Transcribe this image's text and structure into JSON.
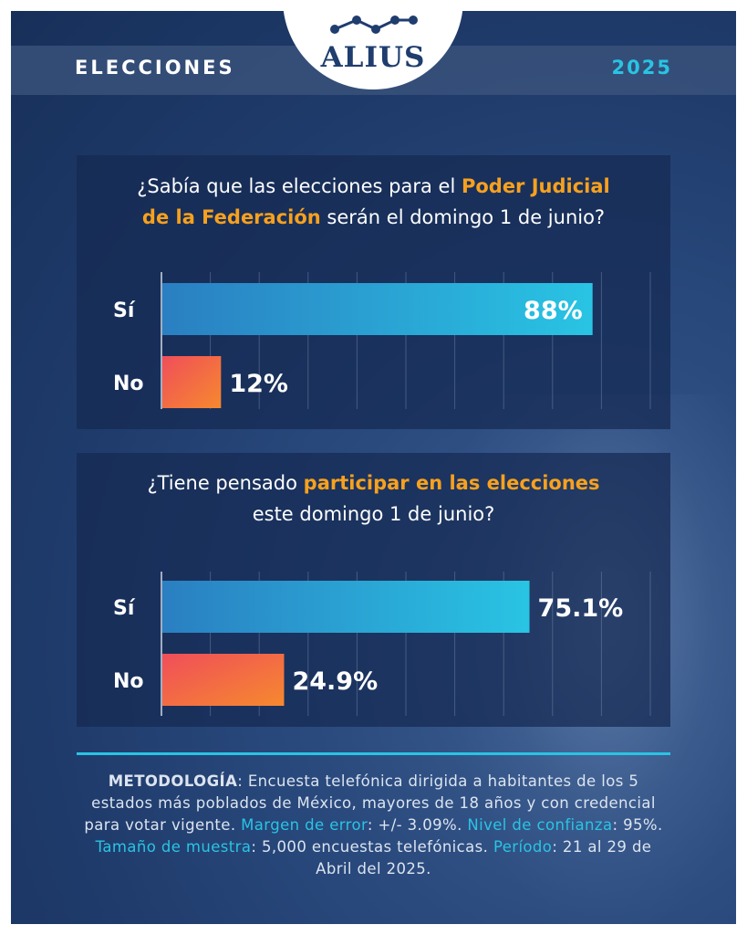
{
  "header": {
    "section": "ELECCIONES",
    "year": "2025",
    "brand": "ALIUS"
  },
  "chart_data": [
    {
      "type": "bar",
      "orientation": "horizontal",
      "title": "¿Sabía que las elecciones para el Poder Judicial de la Federación serán el domingo 1 de junio?",
      "title_parts": {
        "a": "¿Sabía que las elecciones para el ",
        "b": "Poder Judicial",
        "c": "de la Federación",
        "d": " serán el domingo 1 de junio?"
      },
      "categories": [
        "Sí",
        "No"
      ],
      "values": [
        88,
        12
      ],
      "value_labels": [
        "88%",
        "12%"
      ],
      "unit": "%",
      "xlim": [
        0,
        100
      ],
      "grid": true,
      "colors": [
        "#29c4e4",
        "#f04e5a"
      ]
    },
    {
      "type": "bar",
      "orientation": "horizontal",
      "title": "¿Tiene pensado participar en las elecciones este domingo 1 de junio?",
      "title_parts": {
        "a": "¿Tiene pensado ",
        "b": "participar en las elecciones",
        "c": "este domingo 1 de junio?"
      },
      "categories": [
        "Sí",
        "No"
      ],
      "values": [
        75.1,
        24.9
      ],
      "value_labels": [
        "75.1%",
        "24.9%"
      ],
      "unit": "%",
      "xlim": [
        0,
        100
      ],
      "grid": true,
      "colors": [
        "#29c4e4",
        "#f04e5a"
      ]
    }
  ],
  "methodology": {
    "label": "METODOLOGÍA",
    "text1": ": Encuesta telefónica dirigida a habitantes de los 5 estados más poblados de México, mayores de 18 años y con credencial para votar vigente. ",
    "k_margin": "Margen de error",
    "v_margin": ": +/- 3.09%. ",
    "k_confidence": "Nivel de confianza",
    "v_confidence": ": 95%. ",
    "k_sample": "Tamaño de muestra",
    "v_sample": ": 5,000 encuestas telefónicas. ",
    "k_period": "Período",
    "v_period": ": 21 al 29 de Abril del 2025."
  }
}
